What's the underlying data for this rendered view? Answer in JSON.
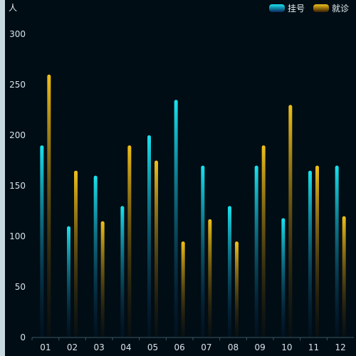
{
  "chart_data": {
    "type": "bar",
    "ylabel": "人",
    "categories": [
      "01",
      "02",
      "03",
      "04",
      "05",
      "06",
      "07",
      "08",
      "09",
      "10",
      "11",
      "12"
    ],
    "ylim": [
      0,
      300
    ],
    "yticks": [
      0,
      50,
      100,
      150,
      200,
      250,
      300
    ],
    "series": [
      {
        "name": "挂号",
        "values": [
          190,
          110,
          160,
          130,
          200,
          235,
          170,
          130,
          170,
          118,
          165,
          170
        ],
        "color_top": "#19e3f0",
        "color_bottom": "#0a2a5c"
      },
      {
        "name": "就诊",
        "values": [
          260,
          165,
          115,
          190,
          175,
          95,
          117,
          95,
          190,
          230,
          170,
          120
        ],
        "color_top": "#f0c019",
        "color_bottom": "#3a1f05"
      }
    ],
    "legend_position": "top-right",
    "grid": false
  }
}
